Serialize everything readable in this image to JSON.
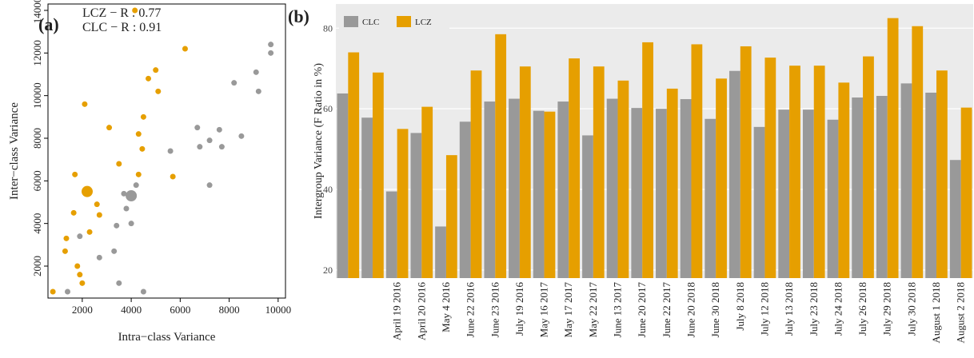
{
  "chart_data": [
    {
      "type": "scatter",
      "panel_label": "(a)",
      "annotations": [
        "LCZ − R : 0.77",
        "CLC − R : 0.91"
      ],
      "xlabel": "Intra−class Variance",
      "ylabel": "Inter−class Variance",
      "xlim": [
        600,
        10300
      ],
      "ylim": [
        500,
        14300
      ],
      "xticks": [
        2000,
        4000,
        6000,
        8000,
        10000
      ],
      "yticks": [
        2000,
        4000,
        6000,
        8000,
        10000,
        12000,
        14000
      ],
      "series": [
        {
          "color": "#e69f00",
          "marker_radius": 3.5,
          "x": [
            800,
            1300,
            1350,
            1650,
            1700,
            1800,
            1900,
            2000,
            2100,
            2300,
            2600,
            2700,
            3100,
            3500,
            4150,
            4300,
            4300,
            4450,
            4500,
            4700,
            5000,
            5100,
            5700,
            6200
          ],
          "values": [
            800,
            2700,
            3300,
            4500,
            6300,
            2000,
            1600,
            1200,
            9600,
            3600,
            4900,
            4400,
            8500,
            6800,
            14000,
            8200,
            6300,
            7500,
            9000,
            10800,
            11200,
            10200,
            6200,
            12200
          ]
        },
        {
          "color": "#999999",
          "marker_radius": 3.5,
          "x": [
            1400,
            1900,
            2700,
            3300,
            3400,
            3500,
            3700,
            3800,
            4000,
            4200,
            4500,
            5600,
            6700,
            6800,
            7200,
            7200,
            7600,
            7700,
            8200,
            8500,
            9100,
            9200,
            9700,
            9700
          ],
          "values": [
            800,
            3400,
            2400,
            2700,
            3900,
            1200,
            5400,
            4700,
            4000,
            5800,
            800,
            7400,
            8500,
            7600,
            7900,
            5800,
            8400,
            7600,
            10600,
            8100,
            11100,
            10200,
            12400,
            12000
          ]
        },
        {
          "color": "#e69f00",
          "marker_radius": 7,
          "x": [
            2200
          ],
          "values": [
            5500
          ]
        },
        {
          "color": "#999999",
          "marker_radius": 7,
          "x": [
            4000
          ],
          "values": [
            5300
          ]
        }
      ]
    },
    {
      "type": "bar",
      "panel_label": "(b)",
      "ylabel": "Intergroup Variance (F Ratio in %)",
      "categories": [
        null,
        null,
        "April 19 2016",
        "April 20 2016",
        "May 4 2016",
        "June 22 2016",
        "June 23 2016",
        "July 19 2016",
        "May 16 2017",
        "May 17 2017",
        "May 22 2017",
        "June 13 2017",
        "June 20 2017",
        "June 22 2017",
        "June 20 2018",
        "June 30 2018",
        "July 8 2018",
        "July 12 2018",
        "July 13 2018",
        "July 23 2018",
        "July 24 2018",
        "July 26 2018",
        "July 29 2018",
        "July 30 2018",
        "August 1 2018",
        "August 2 2018"
      ],
      "series": [
        {
          "name": "CLC",
          "color": "#999999",
          "values": [
            63.8,
            57.8,
            39.5,
            54,
            30.8,
            56.8,
            61.8,
            62.5,
            59.5,
            61.8,
            53.4,
            62.5,
            60.2,
            60,
            62.4,
            57.5,
            69.4,
            55.5,
            59.8,
            59.8,
            57.3,
            62.8,
            63.2,
            66.3,
            64,
            47.3
          ]
        },
        {
          "name": "LCZ",
          "color": "#e69f00",
          "values": [
            74,
            69,
            55,
            60.5,
            48.5,
            69.5,
            78.5,
            70.5,
            59.3,
            72.5,
            70.5,
            67,
            76.5,
            65,
            76,
            67.5,
            75.5,
            72.7,
            70.7,
            70.7,
            66.5,
            73,
            82.5,
            80.5,
            69.5,
            60.3
          ]
        }
      ],
      "ylim": [
        18,
        86
      ],
      "yticks": [
        20,
        40,
        60,
        80
      ],
      "grid": true,
      "legend": "top-left"
    }
  ]
}
